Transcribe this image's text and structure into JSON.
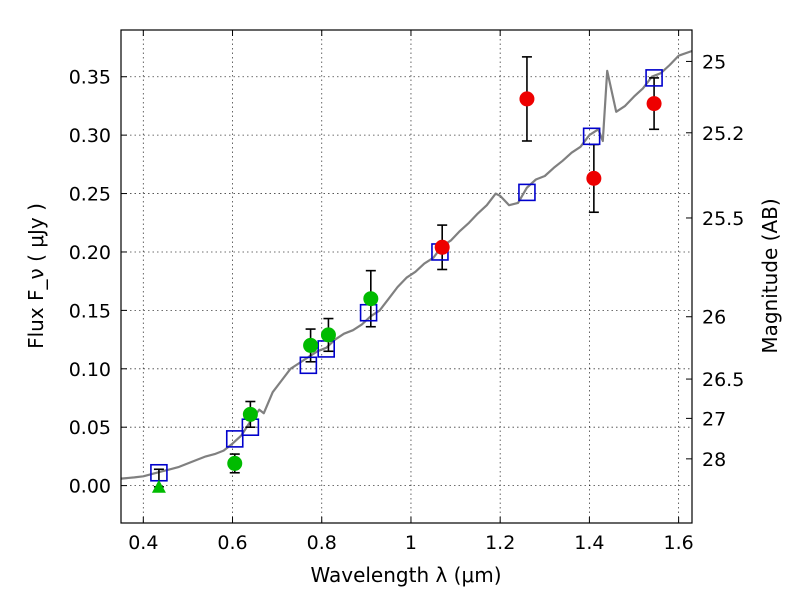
{
  "chart_data": {
    "type": "scatter",
    "xlabel": "Wavelength  λ (μm)",
    "ylabel": "Flux  F_ν  ( μJy )",
    "y2label": "Magnitude (AB)",
    "xlim": [
      0.35,
      1.63
    ],
    "ylim": [
      -0.032,
      0.39
    ],
    "grid": true,
    "legend": "none",
    "x_ticks": [
      0.4,
      0.6,
      0.8,
      1.0,
      1.2,
      1.4,
      1.6
    ],
    "x_tick_labels": [
      "0.4",
      "0.6",
      "0.8",
      "1",
      "1.2",
      "1.4",
      "1.6"
    ],
    "y_ticks": [
      0.0,
      0.05,
      0.1,
      0.15,
      0.2,
      0.25,
      0.3,
      0.35
    ],
    "y_tick_labels": [
      "0.00",
      "0.05",
      "0.10",
      "0.15",
      "0.20",
      "0.25",
      "0.30",
      "0.35"
    ],
    "mag_ticks": [
      25,
      25.2,
      25.5,
      26,
      26.5,
      27,
      28
    ],
    "mag_tick_labels": [
      "25",
      "25.2",
      "25.5",
      "26",
      "26.5",
      "27",
      "28"
    ],
    "colors": {
      "model_line": "#808080",
      "model_squares": "#0000cc",
      "green_points": "#00bb00",
      "red_points": "#ee0000",
      "error_bars": "#000000"
    },
    "model_spectrum": {
      "x": [
        0.35,
        0.38,
        0.4,
        0.42,
        0.44,
        0.46,
        0.48,
        0.5,
        0.52,
        0.54,
        0.56,
        0.58,
        0.6,
        0.62,
        0.64,
        0.66,
        0.67,
        0.69,
        0.71,
        0.73,
        0.75,
        0.77,
        0.79,
        0.81,
        0.83,
        0.85,
        0.87,
        0.89,
        0.91,
        0.93,
        0.95,
        0.97,
        0.99,
        1.01,
        1.03,
        1.05,
        1.07,
        1.09,
        1.11,
        1.13,
        1.15,
        1.17,
        1.19,
        1.2,
        1.22,
        1.24,
        1.26,
        1.28,
        1.3,
        1.32,
        1.34,
        1.36,
        1.38,
        1.4,
        1.42,
        1.43,
        1.44,
        1.46,
        1.48,
        1.5,
        1.52,
        1.54,
        1.56,
        1.58,
        1.6,
        1.63
      ],
      "y": [
        0.006,
        0.007,
        0.008,
        0.01,
        0.012,
        0.014,
        0.016,
        0.019,
        0.022,
        0.025,
        0.027,
        0.03,
        0.036,
        0.043,
        0.055,
        0.065,
        0.062,
        0.08,
        0.09,
        0.1,
        0.105,
        0.11,
        0.115,
        0.118,
        0.125,
        0.13,
        0.133,
        0.138,
        0.145,
        0.15,
        0.16,
        0.17,
        0.178,
        0.183,
        0.19,
        0.195,
        0.205,
        0.21,
        0.218,
        0.225,
        0.233,
        0.24,
        0.25,
        0.248,
        0.24,
        0.242,
        0.255,
        0.262,
        0.265,
        0.272,
        0.278,
        0.285,
        0.29,
        0.3,
        0.305,
        0.295,
        0.355,
        0.32,
        0.325,
        0.333,
        0.34,
        0.35,
        0.353,
        0.36,
        0.368,
        0.372
      ]
    },
    "model_squares": {
      "x": [
        0.435,
        0.605,
        0.64,
        0.77,
        0.81,
        0.905,
        1.065,
        1.26,
        1.405,
        1.545
      ],
      "y": [
        0.011,
        0.04,
        0.05,
        0.103,
        0.117,
        0.148,
        0.2,
        0.251,
        0.299,
        0.349
      ]
    },
    "green_points": {
      "x": [
        0.605,
        0.64,
        0.775,
        0.815,
        0.91
      ],
      "y": [
        0.019,
        0.061,
        0.12,
        0.129,
        0.16
      ],
      "err": [
        0.008,
        0.011,
        0.014,
        0.014,
        0.024
      ]
    },
    "green_upper_limit": {
      "x": 0.435,
      "y": -0.001,
      "err_up": 0.015
    },
    "red_points": {
      "x": [
        1.07,
        1.26,
        1.41,
        1.545
      ],
      "y": [
        0.204,
        0.331,
        0.263,
        0.327
      ],
      "err": [
        0.019,
        0.036,
        0.029,
        0.022
      ]
    }
  }
}
